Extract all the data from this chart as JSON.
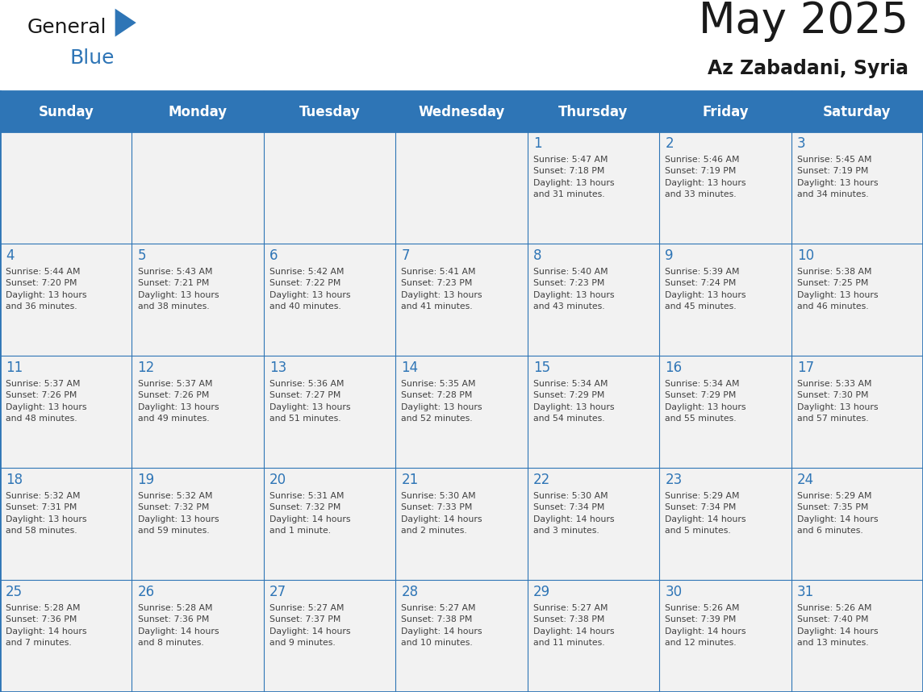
{
  "title": "May 2025",
  "subtitle": "Az Zabadani, Syria",
  "days_of_week": [
    "Sunday",
    "Monday",
    "Tuesday",
    "Wednesday",
    "Thursday",
    "Friday",
    "Saturday"
  ],
  "header_bg": "#2E75B6",
  "header_text": "#FFFFFF",
  "cell_bg": "#F2F2F2",
  "grid_line_color": "#2E75B6",
  "day_num_color": "#2E75B6",
  "cell_text_color": "#404040",
  "title_color": "#1A1A1A",
  "subtitle_color": "#1A1A1A",
  "logo_general_color": "#1A1A1A",
  "logo_blue_color": "#2E75B6",
  "logo_triangle_color": "#2E75B6",
  "weeks": [
    [
      {
        "day": null,
        "info": ""
      },
      {
        "day": null,
        "info": ""
      },
      {
        "day": null,
        "info": ""
      },
      {
        "day": null,
        "info": ""
      },
      {
        "day": 1,
        "info": "Sunrise: 5:47 AM\nSunset: 7:18 PM\nDaylight: 13 hours\nand 31 minutes."
      },
      {
        "day": 2,
        "info": "Sunrise: 5:46 AM\nSunset: 7:19 PM\nDaylight: 13 hours\nand 33 minutes."
      },
      {
        "day": 3,
        "info": "Sunrise: 5:45 AM\nSunset: 7:19 PM\nDaylight: 13 hours\nand 34 minutes."
      }
    ],
    [
      {
        "day": 4,
        "info": "Sunrise: 5:44 AM\nSunset: 7:20 PM\nDaylight: 13 hours\nand 36 minutes."
      },
      {
        "day": 5,
        "info": "Sunrise: 5:43 AM\nSunset: 7:21 PM\nDaylight: 13 hours\nand 38 minutes."
      },
      {
        "day": 6,
        "info": "Sunrise: 5:42 AM\nSunset: 7:22 PM\nDaylight: 13 hours\nand 40 minutes."
      },
      {
        "day": 7,
        "info": "Sunrise: 5:41 AM\nSunset: 7:23 PM\nDaylight: 13 hours\nand 41 minutes."
      },
      {
        "day": 8,
        "info": "Sunrise: 5:40 AM\nSunset: 7:23 PM\nDaylight: 13 hours\nand 43 minutes."
      },
      {
        "day": 9,
        "info": "Sunrise: 5:39 AM\nSunset: 7:24 PM\nDaylight: 13 hours\nand 45 minutes."
      },
      {
        "day": 10,
        "info": "Sunrise: 5:38 AM\nSunset: 7:25 PM\nDaylight: 13 hours\nand 46 minutes."
      }
    ],
    [
      {
        "day": 11,
        "info": "Sunrise: 5:37 AM\nSunset: 7:26 PM\nDaylight: 13 hours\nand 48 minutes."
      },
      {
        "day": 12,
        "info": "Sunrise: 5:37 AM\nSunset: 7:26 PM\nDaylight: 13 hours\nand 49 minutes."
      },
      {
        "day": 13,
        "info": "Sunrise: 5:36 AM\nSunset: 7:27 PM\nDaylight: 13 hours\nand 51 minutes."
      },
      {
        "day": 14,
        "info": "Sunrise: 5:35 AM\nSunset: 7:28 PM\nDaylight: 13 hours\nand 52 minutes."
      },
      {
        "day": 15,
        "info": "Sunrise: 5:34 AM\nSunset: 7:29 PM\nDaylight: 13 hours\nand 54 minutes."
      },
      {
        "day": 16,
        "info": "Sunrise: 5:34 AM\nSunset: 7:29 PM\nDaylight: 13 hours\nand 55 minutes."
      },
      {
        "day": 17,
        "info": "Sunrise: 5:33 AM\nSunset: 7:30 PM\nDaylight: 13 hours\nand 57 minutes."
      }
    ],
    [
      {
        "day": 18,
        "info": "Sunrise: 5:32 AM\nSunset: 7:31 PM\nDaylight: 13 hours\nand 58 minutes."
      },
      {
        "day": 19,
        "info": "Sunrise: 5:32 AM\nSunset: 7:32 PM\nDaylight: 13 hours\nand 59 minutes."
      },
      {
        "day": 20,
        "info": "Sunrise: 5:31 AM\nSunset: 7:32 PM\nDaylight: 14 hours\nand 1 minute."
      },
      {
        "day": 21,
        "info": "Sunrise: 5:30 AM\nSunset: 7:33 PM\nDaylight: 14 hours\nand 2 minutes."
      },
      {
        "day": 22,
        "info": "Sunrise: 5:30 AM\nSunset: 7:34 PM\nDaylight: 14 hours\nand 3 minutes."
      },
      {
        "day": 23,
        "info": "Sunrise: 5:29 AM\nSunset: 7:34 PM\nDaylight: 14 hours\nand 5 minutes."
      },
      {
        "day": 24,
        "info": "Sunrise: 5:29 AM\nSunset: 7:35 PM\nDaylight: 14 hours\nand 6 minutes."
      }
    ],
    [
      {
        "day": 25,
        "info": "Sunrise: 5:28 AM\nSunset: 7:36 PM\nDaylight: 14 hours\nand 7 minutes."
      },
      {
        "day": 26,
        "info": "Sunrise: 5:28 AM\nSunset: 7:36 PM\nDaylight: 14 hours\nand 8 minutes."
      },
      {
        "day": 27,
        "info": "Sunrise: 5:27 AM\nSunset: 7:37 PM\nDaylight: 14 hours\nand 9 minutes."
      },
      {
        "day": 28,
        "info": "Sunrise: 5:27 AM\nSunset: 7:38 PM\nDaylight: 14 hours\nand 10 minutes."
      },
      {
        "day": 29,
        "info": "Sunrise: 5:27 AM\nSunset: 7:38 PM\nDaylight: 14 hours\nand 11 minutes."
      },
      {
        "day": 30,
        "info": "Sunrise: 5:26 AM\nSunset: 7:39 PM\nDaylight: 14 hours\nand 12 minutes."
      },
      {
        "day": 31,
        "info": "Sunrise: 5:26 AM\nSunset: 7:40 PM\nDaylight: 14 hours\nand 13 minutes."
      }
    ]
  ]
}
